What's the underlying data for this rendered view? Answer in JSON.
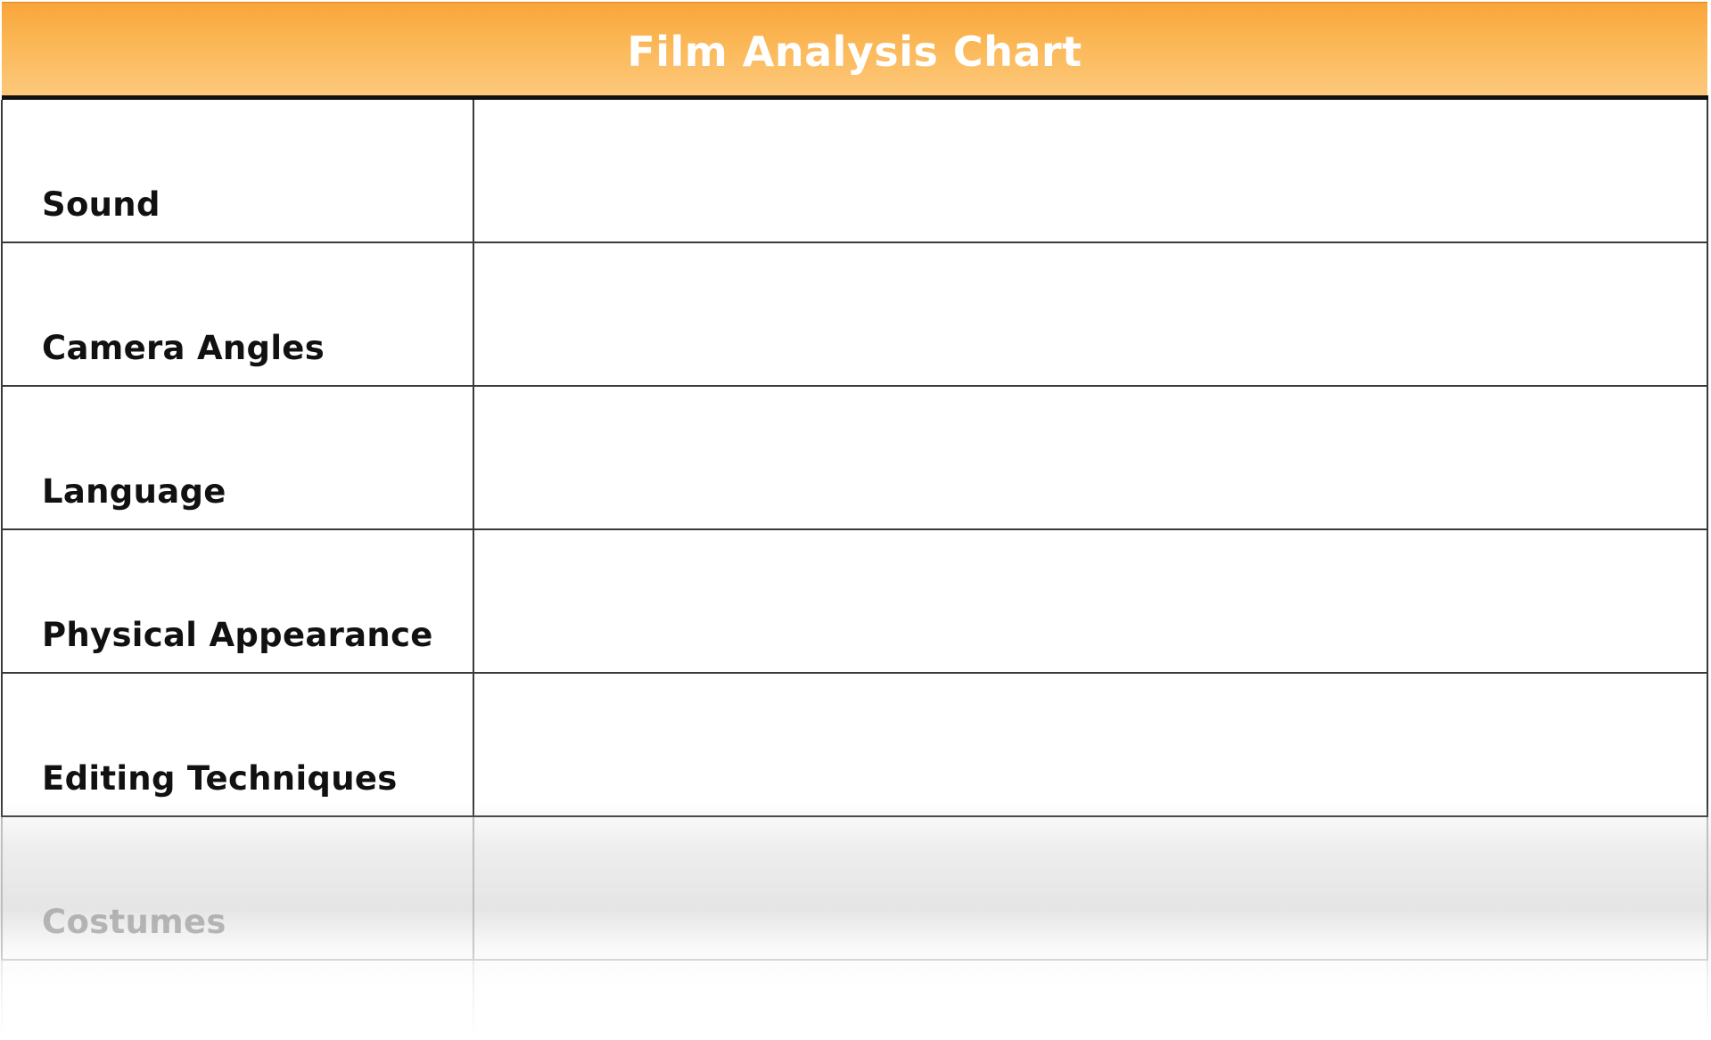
{
  "chart": {
    "title": "Film Analysis Chart",
    "rows": [
      {
        "label": "Sound",
        "value": ""
      },
      {
        "label": "Camera Angles",
        "value": ""
      },
      {
        "label": "Language",
        "value": ""
      },
      {
        "label": "Physical Appearance",
        "value": ""
      },
      {
        "label": "Editing Techniques",
        "value": ""
      },
      {
        "label": "Costumes",
        "value": ""
      }
    ]
  },
  "colors": {
    "header_top": "#f9a53a",
    "header_bottom": "#fdc97c",
    "header_text": "#ffffff",
    "rule": "#111111",
    "grid_line": "#3a3a3a",
    "label_text": "#111111",
    "faded_label_text": "#a8a8a8"
  }
}
